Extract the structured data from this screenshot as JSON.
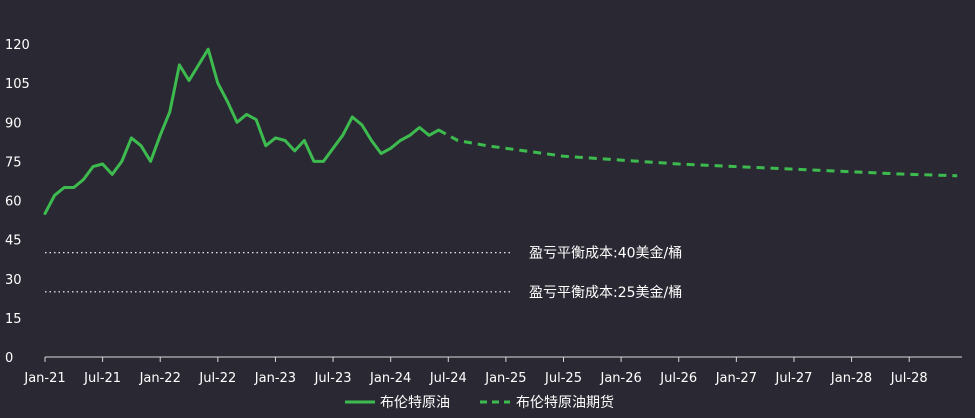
{
  "chart_data": {
    "type": "line",
    "title": "",
    "xlabel": "",
    "ylabel": "",
    "ylim": [
      0,
      120
    ],
    "y_ticks": [
      "0",
      "15",
      "30",
      "45",
      "60",
      "75",
      "90",
      "105",
      "120"
    ],
    "x_ticks": [
      "Jan-21",
      "Jul-21",
      "Jan-22",
      "Jul-22",
      "Jan-23",
      "Jul-23",
      "Jan-24",
      "Jul-24",
      "Jan-25",
      "Jul-25",
      "Jan-26",
      "Jul-26",
      "Jan-27",
      "Jul-27",
      "Jan-28",
      "Jul-28"
    ],
    "grid": false,
    "legend_position": "bottom",
    "colors": {
      "series": "#3dbb4f",
      "background": "#2a2933",
      "text": "#ffffff"
    },
    "series": [
      {
        "name": "布伦特原油",
        "style": "solid",
        "points": [
          [
            "2021-01",
            55
          ],
          [
            "2021-02",
            62
          ],
          [
            "2021-03",
            65
          ],
          [
            "2021-04",
            65
          ],
          [
            "2021-05",
            68
          ],
          [
            "2021-06",
            73
          ],
          [
            "2021-07",
            74
          ],
          [
            "2021-08",
            70
          ],
          [
            "2021-09",
            75
          ],
          [
            "2021-10",
            84
          ],
          [
            "2021-11",
            81
          ],
          [
            "2021-12",
            75
          ],
          [
            "2022-01",
            85
          ],
          [
            "2022-02",
            94
          ],
          [
            "2022-03",
            112
          ],
          [
            "2022-04",
            106
          ],
          [
            "2022-05",
            112
          ],
          [
            "2022-06",
            118
          ],
          [
            "2022-07",
            105
          ],
          [
            "2022-08",
            98
          ],
          [
            "2022-09",
            90
          ],
          [
            "2022-10",
            93
          ],
          [
            "2022-11",
            91
          ],
          [
            "2022-12",
            81
          ],
          [
            "2023-01",
            84
          ],
          [
            "2023-02",
            83
          ],
          [
            "2023-03",
            79
          ],
          [
            "2023-04",
            83
          ],
          [
            "2023-05",
            75
          ],
          [
            "2023-06",
            75
          ],
          [
            "2023-07",
            80
          ],
          [
            "2023-08",
            85
          ],
          [
            "2023-09",
            92
          ],
          [
            "2023-10",
            89
          ],
          [
            "2023-11",
            83
          ],
          [
            "2023-12",
            78
          ],
          [
            "2024-01",
            80
          ],
          [
            "2024-02",
            83
          ],
          [
            "2024-03",
            85
          ],
          [
            "2024-04",
            88
          ],
          [
            "2024-05",
            85
          ],
          [
            "2024-06",
            87
          ]
        ]
      },
      {
        "name": "布伦特原油期货",
        "style": "dashed",
        "points": [
          [
            "2024-06",
            87
          ],
          [
            "2024-08",
            83
          ],
          [
            "2024-11",
            81
          ],
          [
            "2025-01",
            80
          ],
          [
            "2025-07",
            77
          ],
          [
            "2026-01",
            75.5
          ],
          [
            "2026-07",
            74
          ],
          [
            "2027-01",
            73
          ],
          [
            "2027-07",
            72
          ],
          [
            "2028-01",
            71
          ],
          [
            "2028-07",
            70
          ],
          [
            "2028-12",
            69.5
          ]
        ]
      }
    ],
    "annotations": [
      {
        "text": "盈亏平衡成本:40美金/桶",
        "y": 40
      },
      {
        "text": "盈亏平衡成本:25美金/桶",
        "y": 25
      }
    ]
  }
}
